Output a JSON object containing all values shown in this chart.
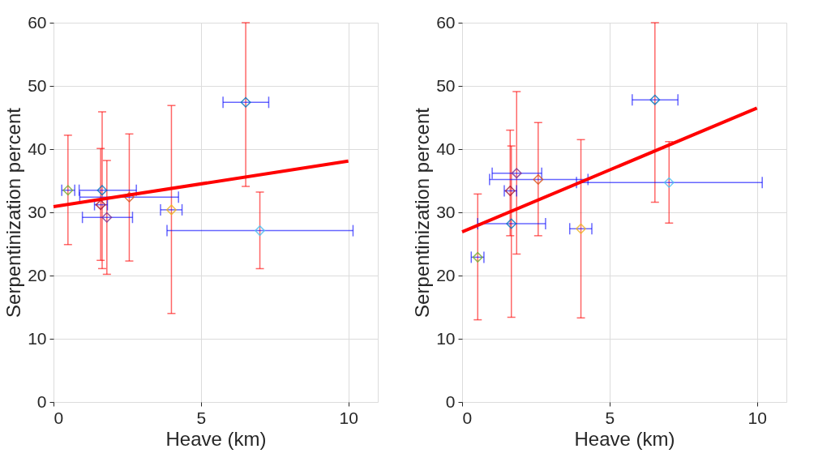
{
  "chart_data": [
    {
      "type": "scatter",
      "xlabel": "Heave (km)",
      "ylabel": "Serpentinization percent",
      "xlim": [
        0,
        11
      ],
      "ylim": [
        0,
        60
      ],
      "xticks": [
        0,
        5,
        10
      ],
      "yticks": [
        0,
        10,
        20,
        30,
        40,
        50,
        60
      ],
      "grid": true,
      "series": [
        {
          "marker": "diamond",
          "x": [
            0.49,
            1.65,
            1.6,
            1.81,
            2.57,
            4.0,
            6.52,
            7.0
          ],
          "values": [
            33.5,
            33.5,
            31.2,
            29.2,
            32.4,
            30.4,
            47.4,
            27.1
          ],
          "colors": [
            "#77ac30",
            "#0072bd",
            "#a2142f",
            "#7e2f8e",
            "#d95319",
            "#edb120",
            "#0072bd",
            "#4dbeee"
          ],
          "errors": [
            [
              24.9,
              42.2
            ],
            [
              21.1,
              45.9
            ],
            [
              22.4,
              40.1
            ],
            [
              20.2,
              38.2
            ],
            [
              22.3,
              42.4
            ],
            [
              14.0,
              46.9
            ],
            [
              34.1,
              60
            ],
            [
              21.1,
              33.2
            ]
          ],
          "xerrors": [
            [
              0.28,
              0.72
            ],
            [
              0.87,
              2.81
            ],
            [
              1.39,
              1.83
            ],
            [
              0.98,
              2.68
            ],
            [
              0.89,
              4.24
            ],
            [
              3.63,
              4.36
            ],
            [
              5.75,
              7.3
            ],
            [
              3.85,
              10.16
            ]
          ]
        },
        {
          "type": "line",
          "color": "#ff0000",
          "x": [
            0,
            10
          ],
          "values": [
            30.9,
            38.1
          ]
        }
      ]
    },
    {
      "type": "scatter",
      "xlabel": "Heave (km)",
      "ylabel": "Serpentinization percent",
      "xlim": [
        0,
        11
      ],
      "ylim": [
        0,
        60
      ],
      "xticks": [
        0,
        5,
        10
      ],
      "yticks": [
        0,
        10,
        20,
        30,
        40,
        50,
        60
      ],
      "grid": true,
      "series": [
        {
          "marker": "diamond",
          "x": [
            0.53,
            1.67,
            1.63,
            1.85,
            2.58,
            4.03,
            6.54,
            7.02
          ],
          "values": [
            22.9,
            28.2,
            33.4,
            36.2,
            35.2,
            27.4,
            47.8,
            34.7
          ],
          "colors": [
            "#77ac30",
            "#0072bd",
            "#a2142f",
            "#7e2f8e",
            "#d95319",
            "#edb120",
            "#0072bd",
            "#4dbeee"
          ],
          "errors": [
            [
              13.0,
              32.9
            ],
            [
              13.4,
              40.5
            ],
            [
              26.3,
              43.0
            ],
            [
              23.4,
              49.1
            ],
            [
              26.3,
              44.2
            ],
            [
              13.3,
              41.5
            ],
            [
              31.6,
              60
            ],
            [
              28.3,
              41.2
            ]
          ],
          "xerrors": [
            [
              0.31,
              0.74
            ],
            [
              0.53,
              2.83
            ],
            [
              1.43,
              1.85
            ],
            [
              1.02,
              2.7
            ],
            [
              0.93,
              4.27
            ],
            [
              3.65,
              4.4
            ],
            [
              5.77,
              7.32
            ],
            [
              3.88,
              10.18
            ]
          ]
        },
        {
          "type": "line",
          "color": "#ff0000",
          "x": [
            0,
            10
          ],
          "values": [
            26.9,
            46.5
          ]
        }
      ]
    }
  ]
}
